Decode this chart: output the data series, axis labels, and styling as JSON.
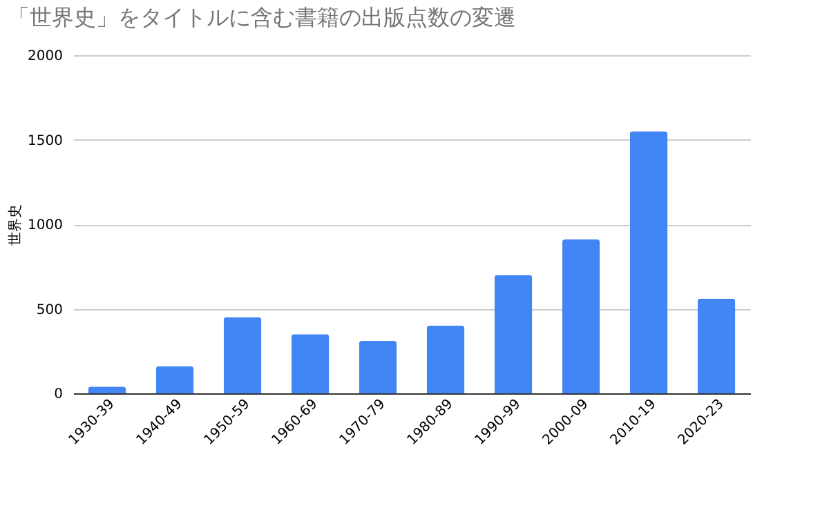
{
  "chart_data": {
    "type": "bar",
    "title": "「世界史」をタイトルに含む書籍の出版点数の変遷",
    "ylabel": "世界史",
    "categories": [
      "1930-39",
      "1940-49",
      "1950-59",
      "1960-69",
      "1970-79",
      "1980-89",
      "1990-99",
      "2000-09",
      "2010-19",
      "2020-23"
    ],
    "series": [
      {
        "color": "#4285f4",
        "values": [
          40,
          160,
          450,
          350,
          310,
          400,
          700,
          910,
          1550,
          560
        ]
      }
    ],
    "ylim": [
      0,
      2000
    ],
    "yticks": [
      0,
      500,
      1000,
      1500,
      2000
    ],
    "grid": "y"
  }
}
